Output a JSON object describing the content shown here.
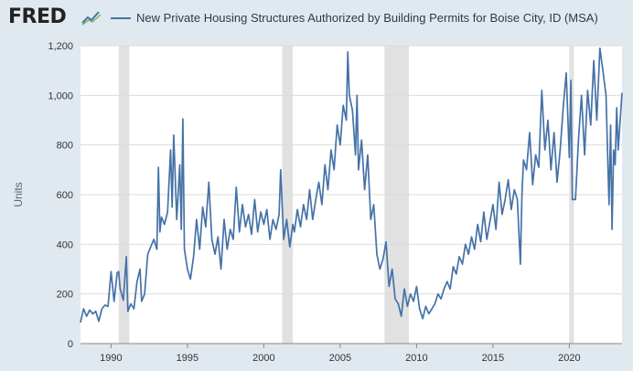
{
  "header": {
    "logo_text": "FRED",
    "logo_icon": "chart-line-icon",
    "title": "New Private Housing Structures Authorized by Building Permits for Boise City, ID (MSA)"
  },
  "colors": {
    "background": "#e1e9f0",
    "plot_background": "#ffffff",
    "series": "#4572a7",
    "recession": "#e1e1e1",
    "grid": "#dcdcdc"
  },
  "chart_data": {
    "type": "line",
    "title": "New Private Housing Structures Authorized by Building Permits for Boise City, ID (MSA)",
    "ylabel": "Units",
    "xlabel": "",
    "xlim": [
      1988.0,
      2023.45
    ],
    "ylim": [
      0,
      1200
    ],
    "x_ticks": [
      1990,
      1995,
      2000,
      2005,
      2010,
      2015,
      2020
    ],
    "y_ticks": [
      0,
      200,
      400,
      600,
      800,
      1000,
      1200
    ],
    "y_tick_labels": [
      "0",
      "200",
      "400",
      "600",
      "800",
      "1,000",
      "1,200"
    ],
    "grid": true,
    "legend": "top-left",
    "recessions": [
      {
        "start": 1990.5,
        "end": 1991.2
      },
      {
        "start": 2001.2,
        "end": 2001.9
      },
      {
        "start": 2007.9,
        "end": 2009.5
      },
      {
        "start": 2020.0,
        "end": 2020.3
      }
    ],
    "series": [
      {
        "name": "New Private Housing Structures Authorized by Building Permits for Boise City, ID (MSA)",
        "points": [
          [
            1988.0,
            85
          ],
          [
            1988.2,
            140
          ],
          [
            1988.4,
            110
          ],
          [
            1988.6,
            135
          ],
          [
            1988.8,
            120
          ],
          [
            1989.0,
            130
          ],
          [
            1989.2,
            90
          ],
          [
            1989.4,
            140
          ],
          [
            1989.6,
            155
          ],
          [
            1989.8,
            150
          ],
          [
            1990.0,
            290
          ],
          [
            1990.2,
            170
          ],
          [
            1990.4,
            285
          ],
          [
            1990.5,
            290
          ],
          [
            1990.6,
            220
          ],
          [
            1990.8,
            175
          ],
          [
            1991.0,
            350
          ],
          [
            1991.1,
            130
          ],
          [
            1991.3,
            160
          ],
          [
            1991.5,
            140
          ],
          [
            1991.7,
            250
          ],
          [
            1991.9,
            300
          ],
          [
            1992.0,
            170
          ],
          [
            1992.2,
            200
          ],
          [
            1992.4,
            360
          ],
          [
            1992.6,
            390
          ],
          [
            1992.8,
            420
          ],
          [
            1993.0,
            380
          ],
          [
            1993.1,
            710
          ],
          [
            1993.2,
            450
          ],
          [
            1993.3,
            510
          ],
          [
            1993.5,
            480
          ],
          [
            1993.7,
            530
          ],
          [
            1993.9,
            780
          ],
          [
            1994.0,
            550
          ],
          [
            1994.1,
            840
          ],
          [
            1994.3,
            500
          ],
          [
            1994.5,
            720
          ],
          [
            1994.6,
            460
          ],
          [
            1994.7,
            905
          ],
          [
            1994.8,
            380
          ],
          [
            1995.0,
            300
          ],
          [
            1995.2,
            260
          ],
          [
            1995.4,
            350
          ],
          [
            1995.6,
            500
          ],
          [
            1995.8,
            380
          ],
          [
            1996.0,
            550
          ],
          [
            1996.2,
            470
          ],
          [
            1996.4,
            650
          ],
          [
            1996.6,
            420
          ],
          [
            1996.8,
            360
          ],
          [
            1997.0,
            430
          ],
          [
            1997.2,
            300
          ],
          [
            1997.4,
            500
          ],
          [
            1997.6,
            380
          ],
          [
            1997.8,
            460
          ],
          [
            1998.0,
            420
          ],
          [
            1998.2,
            630
          ],
          [
            1998.4,
            450
          ],
          [
            1998.6,
            560
          ],
          [
            1998.8,
            470
          ],
          [
            1999.0,
            520
          ],
          [
            1999.2,
            440
          ],
          [
            1999.4,
            580
          ],
          [
            1999.6,
            450
          ],
          [
            1999.8,
            530
          ],
          [
            2000.0,
            480
          ],
          [
            2000.2,
            540
          ],
          [
            2000.4,
            420
          ],
          [
            2000.6,
            500
          ],
          [
            2000.8,
            460
          ],
          [
            2001.0,
            520
          ],
          [
            2001.1,
            700
          ],
          [
            2001.3,
            420
          ],
          [
            2001.5,
            500
          ],
          [
            2001.7,
            390
          ],
          [
            2001.9,
            480
          ],
          [
            2002.0,
            450
          ],
          [
            2002.2,
            540
          ],
          [
            2002.4,
            470
          ],
          [
            2002.6,
            560
          ],
          [
            2002.8,
            500
          ],
          [
            2003.0,
            620
          ],
          [
            2003.2,
            500
          ],
          [
            2003.4,
            580
          ],
          [
            2003.6,
            650
          ],
          [
            2003.8,
            560
          ],
          [
            2004.0,
            720
          ],
          [
            2004.2,
            620
          ],
          [
            2004.4,
            780
          ],
          [
            2004.6,
            700
          ],
          [
            2004.8,
            880
          ],
          [
            2005.0,
            800
          ],
          [
            2005.2,
            960
          ],
          [
            2005.4,
            900
          ],
          [
            2005.5,
            1175
          ],
          [
            2005.6,
            1000
          ],
          [
            2005.8,
            940
          ],
          [
            2006.0,
            760
          ],
          [
            2006.1,
            1000
          ],
          [
            2006.2,
            700
          ],
          [
            2006.4,
            820
          ],
          [
            2006.6,
            620
          ],
          [
            2006.8,
            760
          ],
          [
            2007.0,
            500
          ],
          [
            2007.2,
            560
          ],
          [
            2007.4,
            360
          ],
          [
            2007.6,
            300
          ],
          [
            2007.8,
            340
          ],
          [
            2008.0,
            410
          ],
          [
            2008.2,
            230
          ],
          [
            2008.4,
            300
          ],
          [
            2008.6,
            180
          ],
          [
            2008.8,
            160
          ],
          [
            2009.0,
            110
          ],
          [
            2009.2,
            220
          ],
          [
            2009.4,
            150
          ],
          [
            2009.6,
            200
          ],
          [
            2009.8,
            170
          ],
          [
            2010.0,
            230
          ],
          [
            2010.2,
            140
          ],
          [
            2010.4,
            100
          ],
          [
            2010.6,
            150
          ],
          [
            2010.8,
            120
          ],
          [
            2011.0,
            140
          ],
          [
            2011.2,
            160
          ],
          [
            2011.4,
            200
          ],
          [
            2011.6,
            180
          ],
          [
            2011.8,
            220
          ],
          [
            2012.0,
            250
          ],
          [
            2012.2,
            220
          ],
          [
            2012.4,
            310
          ],
          [
            2012.6,
            280
          ],
          [
            2012.8,
            350
          ],
          [
            2013.0,
            320
          ],
          [
            2013.2,
            400
          ],
          [
            2013.4,
            360
          ],
          [
            2013.6,
            430
          ],
          [
            2013.8,
            380
          ],
          [
            2014.0,
            480
          ],
          [
            2014.2,
            410
          ],
          [
            2014.4,
            530
          ],
          [
            2014.6,
            420
          ],
          [
            2014.8,
            490
          ],
          [
            2015.0,
            560
          ],
          [
            2015.2,
            460
          ],
          [
            2015.4,
            650
          ],
          [
            2015.6,
            520
          ],
          [
            2015.8,
            580
          ],
          [
            2016.0,
            660
          ],
          [
            2016.2,
            540
          ],
          [
            2016.4,
            620
          ],
          [
            2016.6,
            580
          ],
          [
            2016.8,
            320
          ],
          [
            2016.9,
            600
          ],
          [
            2017.0,
            740
          ],
          [
            2017.2,
            700
          ],
          [
            2017.4,
            850
          ],
          [
            2017.6,
            640
          ],
          [
            2017.8,
            760
          ],
          [
            2018.0,
            710
          ],
          [
            2018.2,
            1020
          ],
          [
            2018.4,
            780
          ],
          [
            2018.6,
            900
          ],
          [
            2018.8,
            700
          ],
          [
            2019.0,
            850
          ],
          [
            2019.2,
            650
          ],
          [
            2019.4,
            780
          ],
          [
            2019.6,
            950
          ],
          [
            2019.8,
            1090
          ],
          [
            2020.0,
            750
          ],
          [
            2020.1,
            1060
          ],
          [
            2020.2,
            580
          ],
          [
            2020.4,
            580
          ],
          [
            2020.6,
            820
          ],
          [
            2020.8,
            1000
          ],
          [
            2021.0,
            760
          ],
          [
            2021.2,
            1020
          ],
          [
            2021.4,
            880
          ],
          [
            2021.6,
            1140
          ],
          [
            2021.8,
            900
          ],
          [
            2022.0,
            1190
          ],
          [
            2022.2,
            1100
          ],
          [
            2022.4,
            1000
          ],
          [
            2022.6,
            560
          ],
          [
            2022.7,
            880
          ],
          [
            2022.8,
            460
          ],
          [
            2022.9,
            780
          ],
          [
            2023.0,
            720
          ],
          [
            2023.1,
            950
          ],
          [
            2023.2,
            780
          ],
          [
            2023.45,
            1010
          ]
        ]
      }
    ]
  }
}
